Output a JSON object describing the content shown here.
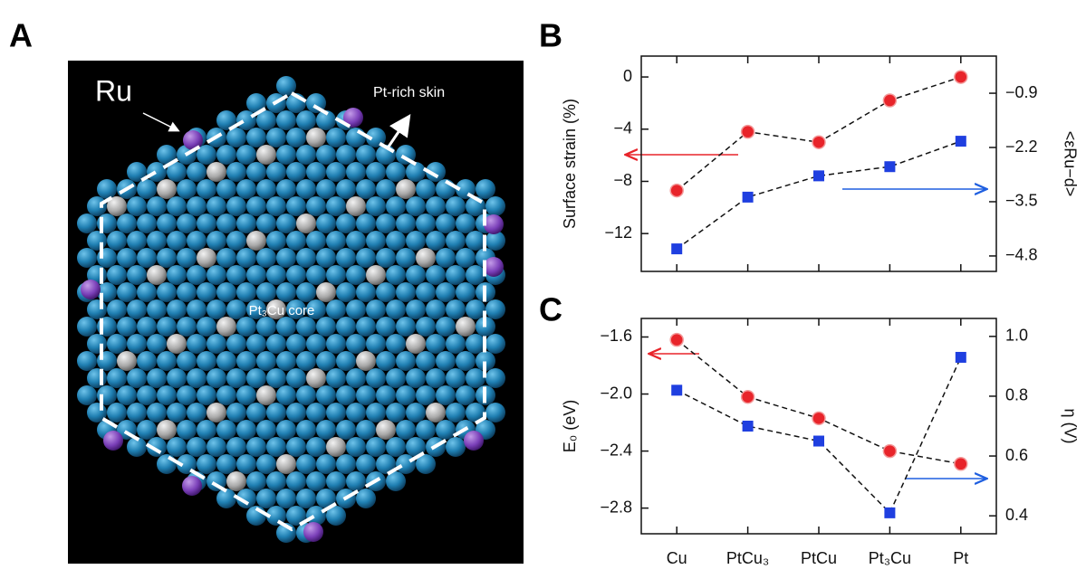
{
  "panel_a": {
    "label": "A",
    "annotations": [
      "Ru",
      "Pt-rich skin",
      "Pt₃Cu core"
    ]
  },
  "chart_data": [
    {
      "type": "line",
      "label": "B",
      "categories": [
        "Cu",
        "PtCu₃",
        "PtCu",
        "Pt₃Cu",
        "Pt"
      ],
      "ylabel": "Surface strain (%)",
      "y2label": "<εRu−d>",
      "ylim": [
        -14.9,
        1.6
      ],
      "yticks": [
        {
          "value": -12,
          "label": "−12"
        },
        {
          "value": -8,
          "label": "−8"
        },
        {
          "value": -4,
          "label": "−4"
        },
        0
      ],
      "y2lim": [
        -5.17,
        -0.01
      ],
      "y2ticks": [
        {
          "value": -4.8,
          "label": "−4.8"
        },
        {
          "value": -3.5,
          "label": "−3.5"
        },
        {
          "value": -2.2,
          "label": "−2.2"
        },
        {
          "value": -0.9,
          "label": "−0.9"
        }
      ],
      "series": [
        {
          "color": "#e8242a",
          "marker": "circle",
          "values": [
            -8.7,
            -4.2,
            -5.0,
            -1.8,
            0
          ]
        },
        {
          "color": "#1f3fe0",
          "marker": "square",
          "axis": "y2",
          "values": [
            -4.63,
            -3.39,
            -2.88,
            -2.66,
            -2.05
          ]
        }
      ]
    },
    {
      "type": "line",
      "label": "C",
      "categories": [
        "Cu",
        "PtCu₃",
        "PtCu",
        "Pt₃Cu",
        "Pt"
      ],
      "ylabel": "E₀ (eV)",
      "y2label": "η (V)",
      "ylim": [
        -2.98,
        -1.47
      ],
      "yticks": [
        {
          "value": -2.8,
          "label": "−2.8"
        },
        {
          "value": -2.4,
          "label": "−2.4"
        },
        {
          "value": -2.0,
          "label": "−2.0"
        },
        {
          "value": -1.6,
          "label": "−1.6"
        }
      ],
      "y2lim": [
        0.34,
        1.06
      ],
      "y2ticks": [
        0.4,
        0.6,
        0.8,
        {
          "value": 1.0,
          "label": "1.0"
        }
      ],
      "series": [
        {
          "color": "#e8242a",
          "marker": "circle",
          "values": [
            -1.62,
            -2.02,
            -2.17,
            -2.4,
            -2.49
          ]
        },
        {
          "color": "#1f3fe0",
          "marker": "square",
          "axis": "y2",
          "values": [
            0.82,
            0.7,
            0.65,
            0.41,
            0.93
          ]
        }
      ]
    }
  ]
}
